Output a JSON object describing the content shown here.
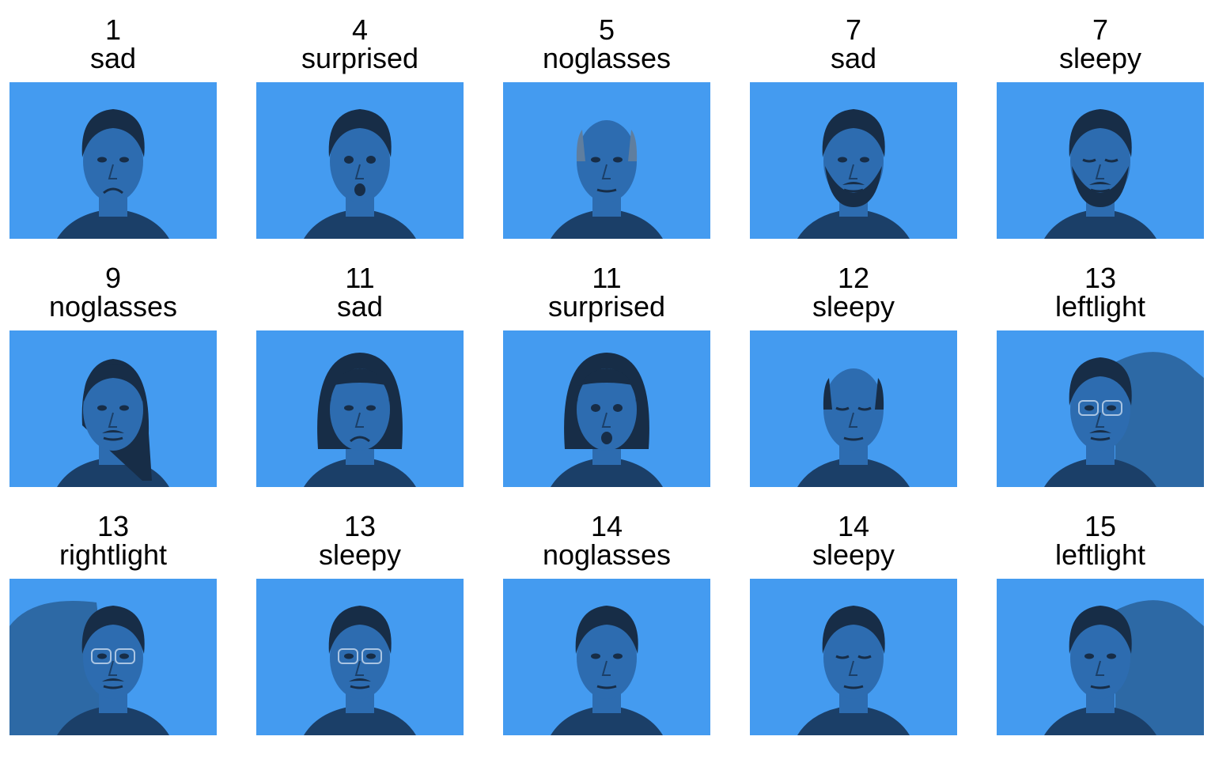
{
  "colors": {
    "image_background": "#449bf0",
    "face_tone": "#2d6cb0",
    "face_shadow": "#1b3f68",
    "hair": "#172d47",
    "caption_text": "#000000"
  },
  "images": [
    {
      "id": "1",
      "label": "sad",
      "hair": "short-swept",
      "expression": "sad",
      "shadow": "none"
    },
    {
      "id": "4",
      "label": "surprised",
      "hair": "short-dark",
      "expression": "surprised",
      "shadow": "none"
    },
    {
      "id": "5",
      "label": "noglasses",
      "hair": "balding-gray",
      "expression": "neutral",
      "shadow": "none"
    },
    {
      "id": "7",
      "label": "sad",
      "hair": "curly-beard",
      "expression": "neutral",
      "shadow": "none"
    },
    {
      "id": "7",
      "label": "sleepy",
      "hair": "curly-beard",
      "expression": "sleepy",
      "shadow": "none"
    },
    {
      "id": "9",
      "label": "noglasses",
      "hair": "long-back",
      "expression": "mustache",
      "shadow": "none"
    },
    {
      "id": "11",
      "label": "sad",
      "hair": "bob",
      "expression": "sad",
      "shadow": "none"
    },
    {
      "id": "11",
      "label": "surprised",
      "hair": "bob",
      "expression": "surprised",
      "shadow": "none"
    },
    {
      "id": "12",
      "label": "sleepy",
      "hair": "balding",
      "expression": "sleepy",
      "shadow": "none"
    },
    {
      "id": "13",
      "label": "leftlight",
      "hair": "short-dark",
      "expression": "glasses",
      "shadow": "right"
    },
    {
      "id": "13",
      "label": "rightlight",
      "hair": "short-dark",
      "expression": "glasses",
      "shadow": "left"
    },
    {
      "id": "13",
      "label": "sleepy",
      "hair": "short-dark",
      "expression": "glasses",
      "shadow": "none"
    },
    {
      "id": "14",
      "label": "noglasses",
      "hair": "short-dark",
      "expression": "neutral",
      "shadow": "none"
    },
    {
      "id": "14",
      "label": "sleepy",
      "hair": "short-dark",
      "expression": "sleepy",
      "shadow": "none"
    },
    {
      "id": "15",
      "label": "leftlight",
      "hair": "short-dark",
      "expression": "neutral",
      "shadow": "right"
    }
  ]
}
